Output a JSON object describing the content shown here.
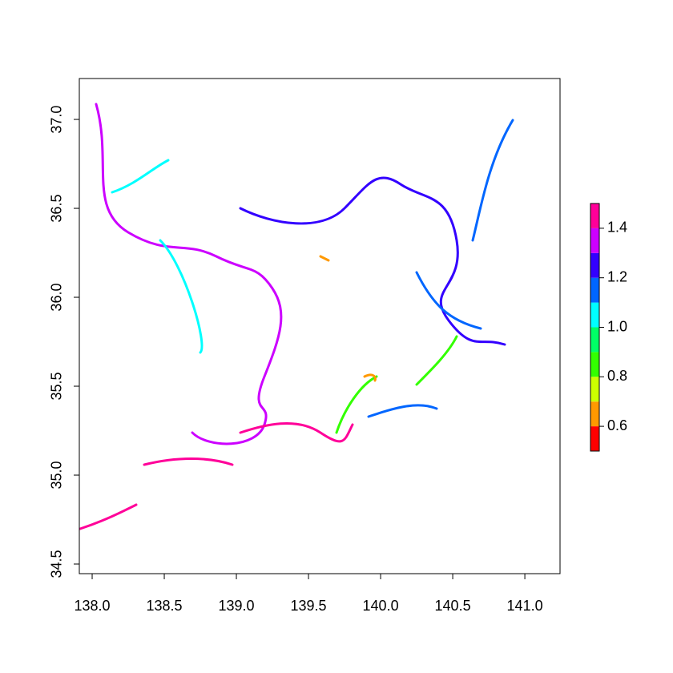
{
  "chart_data": {
    "type": "raster",
    "xlim": [
      137.911,
      141.244
    ],
    "ylim": [
      34.446,
      37.23
    ],
    "xticks": [
      {
        "value": 138.0,
        "label": "138.0"
      },
      {
        "value": 138.5,
        "label": "138.5"
      },
      {
        "value": 139.0,
        "label": "139.0"
      },
      {
        "value": 139.5,
        "label": "139.5"
      },
      {
        "value": 140.0,
        "label": "140.0"
      },
      {
        "value": 140.5,
        "label": "140.5"
      },
      {
        "value": 141.0,
        "label": "141.0"
      }
    ],
    "yticks": [
      34.5,
      {
        "value": 35.0,
        "label": "35.0"
      },
      35.5,
      {
        "value": 36.0,
        "label": "36.0"
      },
      36.5,
      {
        "value": 37.0,
        "label": "37.0"
      }
    ],
    "legend": {
      "breaks": [
        0.5,
        0.6,
        0.7,
        0.8,
        0.9,
        1.0,
        1.1,
        1.2,
        1.3,
        1.4,
        1.5
      ],
      "colors": [
        "#ff0000",
        "#ff9900",
        "#ccff00",
        "#33ff00",
        "#00ff66",
        "#00ffff",
        "#0066ff",
        "#3300ff",
        "#cc00ff",
        "#ff0099"
      ],
      "ticks": [
        0.6,
        0.8,
        {
          "value": 1.0,
          "label": "1.0"
        },
        1.2,
        1.4
      ]
    }
  }
}
